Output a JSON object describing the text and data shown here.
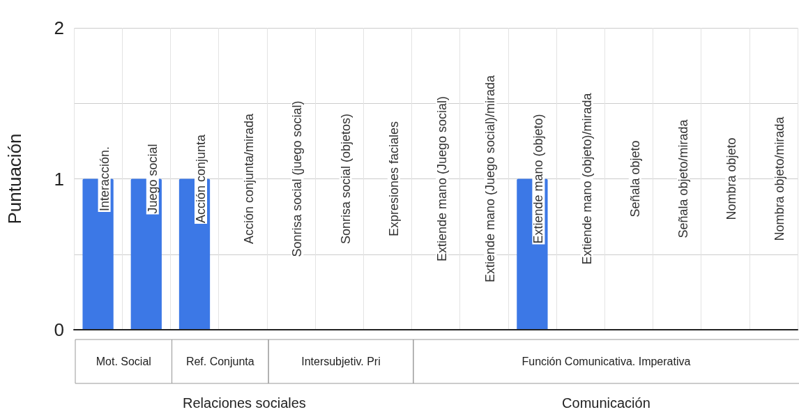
{
  "chart_data": {
    "type": "bar",
    "ylabel": "Puntuación",
    "categories": [
      "Interacción.",
      "Juego social",
      "Acción conjunta",
      "Acción conjunta/mirada",
      "Sonrisa social (juego social)",
      "Sonrisa social (objetos)",
      "Expresiones faciales",
      "Extiende mano (Juego social)",
      "Extiende mano (Juego social)/mirada",
      "Extiende mano (objeto)",
      "Extiende mano (objeto)/mirada",
      "Señala objeto",
      "Señala objeto/mirada",
      "Nombra objeto",
      "Nombra objeto/mirada"
    ],
    "values": [
      1,
      1,
      1,
      0,
      0,
      0,
      0,
      0,
      0,
      1,
      0,
      0,
      0,
      0,
      0
    ],
    "color": "#3c78e6",
    "ylim": [
      0,
      2
    ],
    "yticks": [
      0,
      {
        "value": 0.5,
        "label": null
      },
      1,
      {
        "value": 1.5,
        "label": null
      },
      2
    ],
    "grid": true,
    "annotations": [
      "Mot. Social",
      "Ref. Conjunta",
      "Intersubjetiv. Pri",
      "Función Comunicativa. Imperativa",
      "Relaciones sociales",
      "Comunicación"
    ]
  }
}
